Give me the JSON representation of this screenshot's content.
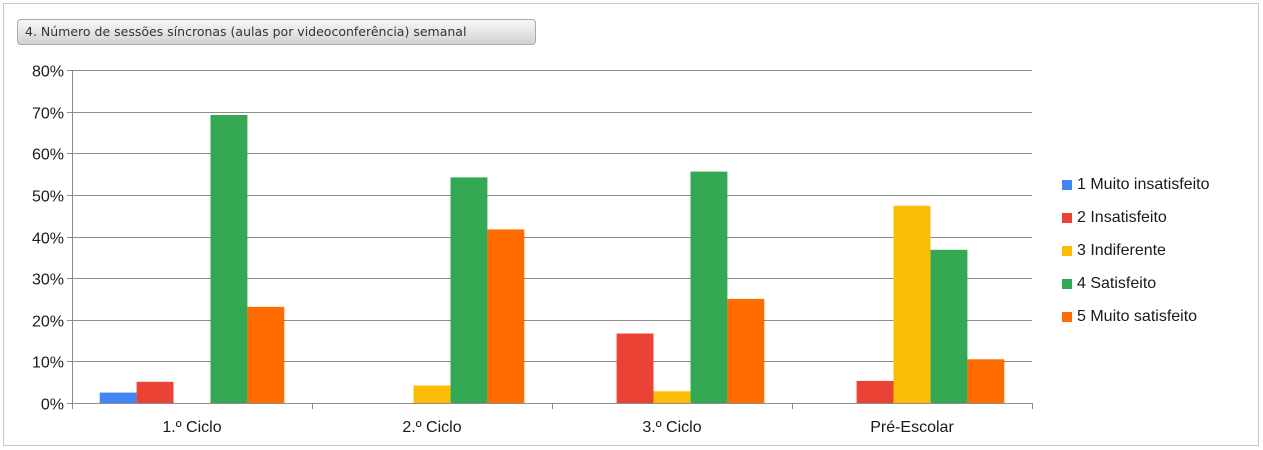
{
  "chart_data": {
    "type": "bar",
    "title": "4. Número de sessões síncronas (aulas por videoconferência) semanal",
    "categories": [
      "1.º Ciclo",
      "2.º Ciclo",
      "3.º Ciclo",
      "Pré-Escolar"
    ],
    "ylim": [
      0,
      0.8
    ],
    "yticks": [
      {
        "value": 0,
        "label": "0%"
      },
      {
        "value": 0.1,
        "label": "10%"
      },
      {
        "value": 0.2,
        "label": "20%"
      },
      {
        "value": 0.3,
        "label": "30%"
      },
      {
        "value": 0.4,
        "label": "40%"
      },
      {
        "value": 0.5,
        "label": "50%"
      },
      {
        "value": 0.6,
        "label": "60%"
      },
      {
        "value": 0.7,
        "label": "70%"
      },
      {
        "value": 0.8,
        "label": "80%"
      }
    ],
    "grid": true,
    "legend_position": "right",
    "series": [
      {
        "name": "1 Muito insatisfeito",
        "color": "#4285f4",
        "values": [
          0.025,
          0,
          0,
          0
        ]
      },
      {
        "name": "2 Insatisfeito",
        "color": "#ea4335",
        "values": [
          0.051,
          0,
          0.167,
          0.053
        ]
      },
      {
        "name": "3 Indiferente",
        "color": "#fbbc04",
        "values": [
          0,
          0.042,
          0.028,
          0.474
        ]
      },
      {
        "name": "4 Satisfeito",
        "color": "#34a853",
        "values": [
          0.692,
          0.542,
          0.556,
          0.368
        ]
      },
      {
        "name": "5 Muito satisfeito",
        "color": "#ff6d01",
        "values": [
          0.231,
          0.417,
          0.25,
          0.105
        ]
      }
    ]
  }
}
